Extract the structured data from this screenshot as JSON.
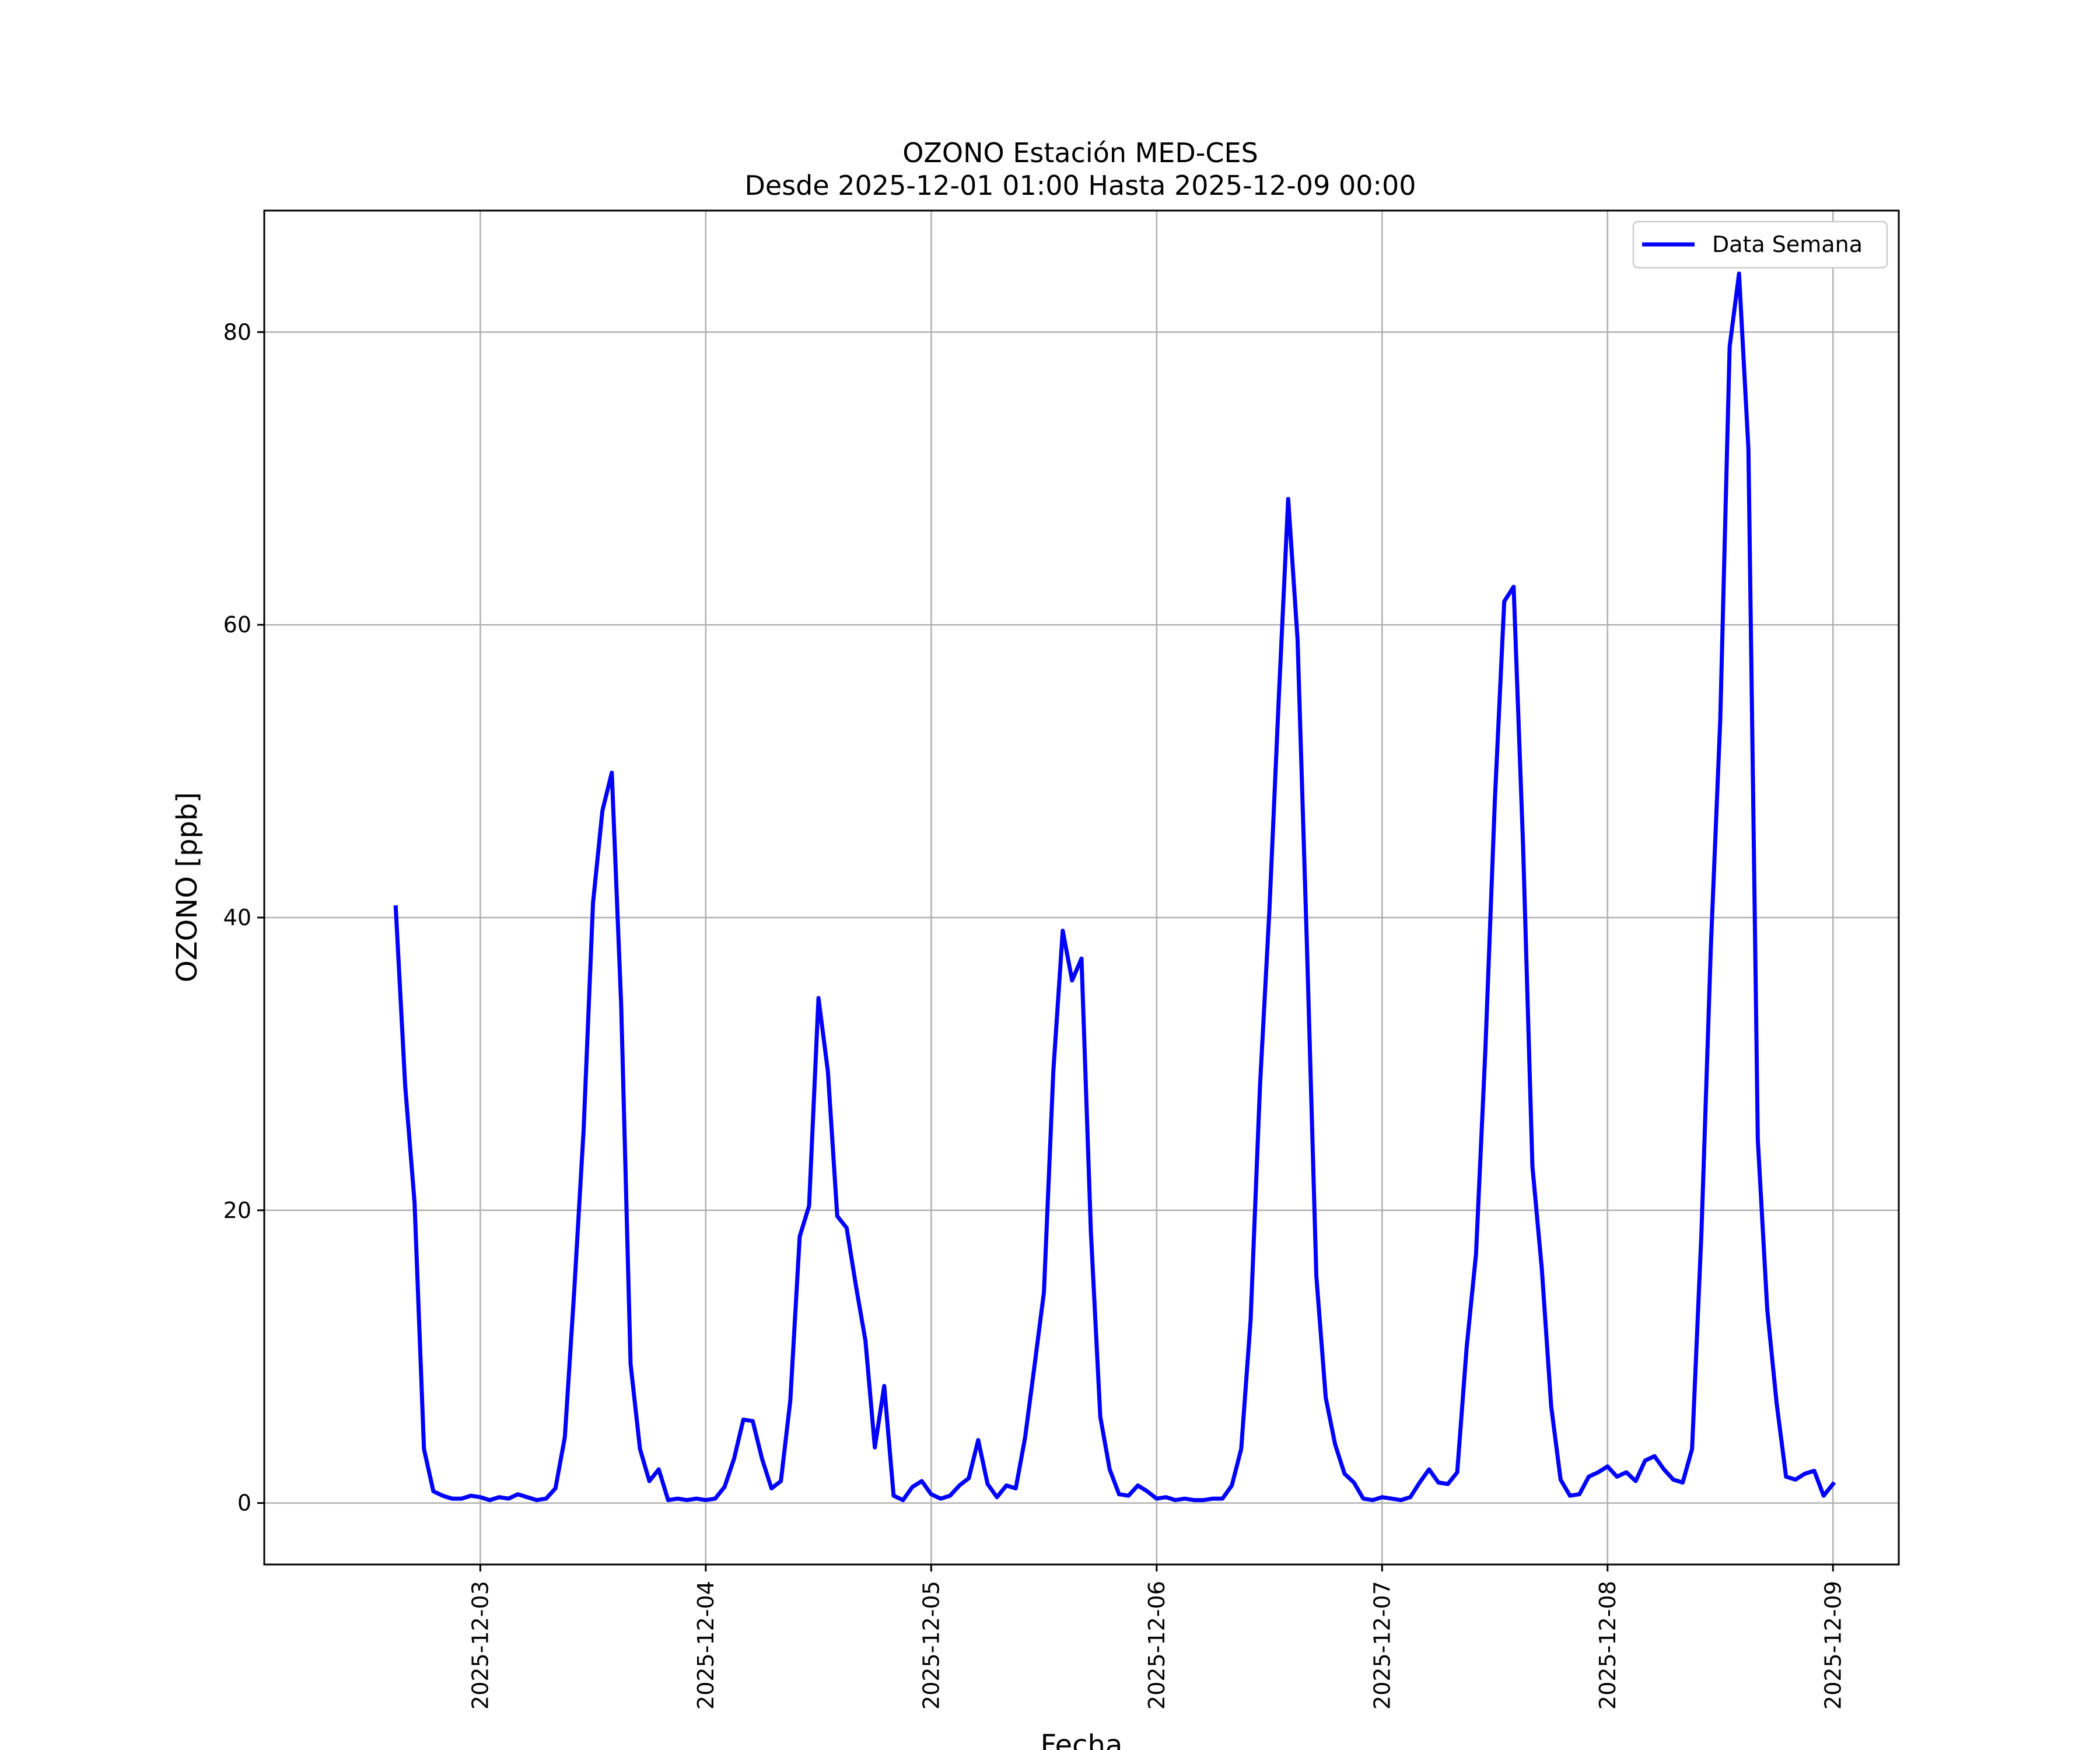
{
  "chart_data": {
    "type": "line",
    "title_line1": "OZONO Estación MED-CES",
    "title_line2": "Desde 2025-12-01 01:00 Hasta 2025-12-09 00:00",
    "xlabel": "Fecha",
    "ylabel": "OZONO [ppb]",
    "ylim": [
      -4.2,
      88.3
    ],
    "xlim": [
      "2025-12-02 01:00",
      "2025-12-09 07:00"
    ],
    "yticks": [
      0,
      20,
      40,
      60,
      80
    ],
    "xticks": [
      "2025-12-03",
      "2025-12-04",
      "2025-12-05",
      "2025-12-06",
      "2025-12-07",
      "2025-12-08",
      "2025-12-09"
    ],
    "grid": true,
    "legend_position": "top-right",
    "series": [
      {
        "name": "Data Semana",
        "color": "#0000ff",
        "start": "2025-12-02 15:00",
        "step_hours": 1,
        "values": [
          40.7,
          28.5,
          20.5,
          3.7,
          0.8,
          0.5,
          0.3,
          0.3,
          0.5,
          0.4,
          0.2,
          0.4,
          0.3,
          0.6,
          0.4,
          0.2,
          0.3,
          1.0,
          4.5,
          14.5,
          25.5,
          41.0,
          47.3,
          49.9,
          34.0,
          9.5,
          3.7,
          1.5,
          2.3,
          0.2,
          0.3,
          0.2,
          0.3,
          0.2,
          0.3,
          1.1,
          3.0,
          5.7,
          5.6,
          3.0,
          1.0,
          1.5,
          7.0,
          18.2,
          20.3,
          34.5,
          29.5,
          19.6,
          18.8,
          14.8,
          11.1,
          3.8,
          8.0,
          0.5,
          0.2,
          1.1,
          1.5,
          0.6,
          0.3,
          0.5,
          1.2,
          1.7,
          4.3,
          1.3,
          0.4,
          1.2,
          1.0,
          4.5,
          9.4,
          14.4,
          29.5,
          39.1,
          35.7,
          37.2,
          18.5,
          5.9,
          2.3,
          0.6,
          0.5,
          1.2,
          0.8,
          0.3,
          0.4,
          0.2,
          0.3,
          0.2,
          0.2,
          0.3,
          0.3,
          1.2,
          3.7,
          12.5,
          28.5,
          40.5,
          55.0,
          68.6,
          59.0,
          38.0,
          15.5,
          7.2,
          4.0,
          2.0,
          1.4,
          0.3,
          0.2,
          0.4,
          0.3,
          0.2,
          0.4,
          1.4,
          2.3,
          1.4,
          1.3,
          2.1,
          10.6,
          17.0,
          31.0,
          48.0,
          61.6,
          62.6,
          45.0,
          23.0,
          16.0,
          6.6,
          1.6,
          0.5,
          0.6,
          1.8,
          2.1,
          2.5,
          1.8,
          2.1,
          1.5,
          2.9,
          3.2,
          2.3,
          1.6,
          1.4,
          3.7,
          18.5,
          38.0,
          53.5,
          79.0,
          84.0,
          72.0,
          24.8,
          13.2,
          6.8,
          1.8,
          1.6,
          2.0,
          2.2,
          0.5,
          1.3
        ]
      }
    ]
  }
}
